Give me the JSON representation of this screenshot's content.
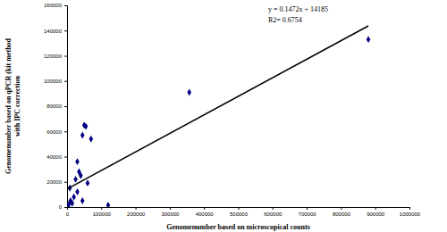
{
  "chart_data": {
    "type": "scatter",
    "x_label": "Genomenumber based on microscopical counts",
    "y_label": [
      "Genomenumber based on qPCR (kit method",
      "with IPC correction"
    ],
    "annotations": [
      "y = 0.1472x + 14185",
      "R2= 0.6754"
    ],
    "xlim": [
      0,
      1000000
    ],
    "ylim": [
      0,
      160000
    ],
    "xticks": [
      0,
      100000,
      200000,
      300000,
      400000,
      500000,
      600000,
      700000,
      800000,
      900000,
      1000000
    ],
    "yticks": [
      0,
      20000,
      40000,
      60000,
      80000,
      100000,
      120000,
      140000,
      160000
    ],
    "grid": false,
    "series": [
      {
        "type": "scatter",
        "marker": "diamond",
        "color": "#000080",
        "x": [
          3000,
          5000,
          8000,
          10000,
          15000,
          20000,
          25000,
          30000,
          30000,
          35000,
          40000,
          45000,
          45000,
          50000,
          55000,
          60000,
          70000,
          120000,
          357000,
          880000
        ],
        "values": [
          500,
          2000,
          15000,
          5000,
          3000,
          8000,
          22000,
          12000,
          36000,
          28000,
          25000,
          57000,
          5000,
          65000,
          64000,
          19000,
          54000,
          1500,
          91000,
          133000
        ]
      },
      {
        "type": "line",
        "line_style": "solid",
        "color": "#000000",
        "x": [
          0,
          880000
        ],
        "values": [
          14185,
          143721
        ]
      }
    ]
  }
}
